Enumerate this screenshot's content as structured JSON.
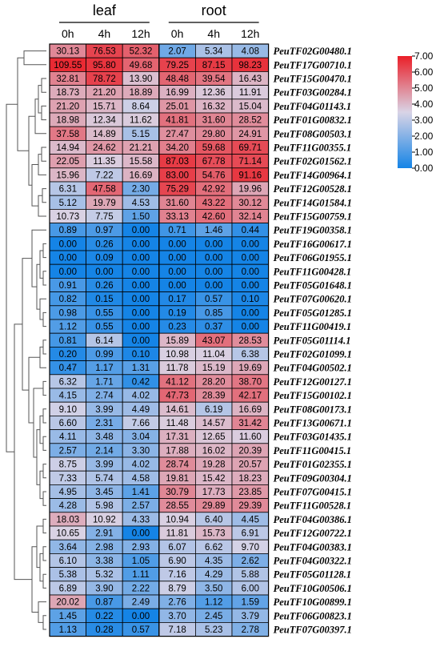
{
  "chart_data": {
    "type": "heatmap",
    "groups": [
      "leaf",
      "root"
    ],
    "columns": [
      "0h",
      "4h",
      "12h",
      "0h",
      "4h",
      "12h"
    ],
    "rows": [
      "PeuTF02G00480.1",
      "PeuTF17G00710.1",
      "PeuTF15G00470.1",
      "PeuTF03G00284.1",
      "PeuTF04G01143.1",
      "PeuTF01G00832.1",
      "PeuTF08G00503.1",
      "PeuTF11G00355.1",
      "PeuTF02G01562.1",
      "PeuTF14G00964.1",
      "PeuTF12G00528.1",
      "PeuTF14G01584.1",
      "PeuTF15G00759.1",
      "PeuTF19G00358.1",
      "PeuTF16G00617.1",
      "PeuTF06G01955.1",
      "PeuTF11G00428.1",
      "PeuTF05G01648.1",
      "PeuTF07G00620.1",
      "PeuTF05G01285.1",
      "PeuTF11G00419.1",
      "PeuTF05G01114.1",
      "PeuTF02G01099.1",
      "PeuTF04G00502.1",
      "PeuTF12G00127.1",
      "PeuTF15G00102.1",
      "PeuTF08G00173.1",
      "PeuTF13G00671.1",
      "PeuTF03G01435.1",
      "PeuTF11G00415.1",
      "PeuTF01G02355.1",
      "PeuTF09G00304.1",
      "PeuTF07G00415.1",
      "PeuTF11G00528.1",
      "PeuTF04G00386.1",
      "PeuTF12G00722.1",
      "PeuTF04G00383.1",
      "PeuTF04G00322.1",
      "PeuTF05G01128.1",
      "PeuTF10G00506.1",
      "PeuTF10G00899.1",
      "PeuTF06G00823.1",
      "PeuTF07G00397.1"
    ],
    "values": [
      [
        "30.13",
        "76.53",
        "52.32",
        "2.07",
        "5.34",
        "4.08"
      ],
      [
        "109.55",
        "95.80",
        "49.68",
        "79.25",
        "87.15",
        "98.23"
      ],
      [
        "32.81",
        "78.72",
        "13.90",
        "48.48",
        "39.54",
        "16.43"
      ],
      [
        "18.73",
        "21.20",
        "18.89",
        "16.99",
        "12.36",
        "11.91"
      ],
      [
        "21.20",
        "15.71",
        "8.64",
        "25.01",
        "16.32",
        "15.04"
      ],
      [
        "18.98",
        "12.34",
        "11.62",
        "41.81",
        "31.60",
        "28.52"
      ],
      [
        "37.58",
        "14.89",
        "5.15",
        "27.47",
        "29.80",
        "24.91"
      ],
      [
        "14.94",
        "24.62",
        "21.21",
        "34.20",
        "59.68",
        "69.71"
      ],
      [
        "22.05",
        "11.35",
        "15.58",
        "87.03",
        "67.78",
        "71.14"
      ],
      [
        "15.96",
        "7.22",
        "16.69",
        "83.00",
        "54.76",
        "91.16"
      ],
      [
        "6.31",
        "47.58",
        "2.30",
        "75.29",
        "42.92",
        "19.96"
      ],
      [
        "5.12",
        "19.79",
        "4.53",
        "31.60",
        "43.22",
        "30.12"
      ],
      [
        "10.73",
        "7.75",
        "1.50",
        "33.13",
        "42.60",
        "32.14"
      ],
      [
        "0.89",
        "0.97",
        "0.00",
        "0.71",
        "1.46",
        "0.44"
      ],
      [
        "0.00",
        "0.26",
        "0.00",
        "0.00",
        "0.00",
        "0.00"
      ],
      [
        "0.00",
        "0.09",
        "0.00",
        "0.00",
        "0.00",
        "0.00"
      ],
      [
        "0.00",
        "0.00",
        "0.00",
        "0.00",
        "0.00",
        "0.00"
      ],
      [
        "0.91",
        "0.26",
        "0.00",
        "0.00",
        "0.00",
        "0.00"
      ],
      [
        "0.82",
        "0.15",
        "0.00",
        "0.17",
        "0.57",
        "0.10"
      ],
      [
        "0.98",
        "0.55",
        "0.00",
        "0.19",
        "0.85",
        "0.00"
      ],
      [
        "1.12",
        "0.55",
        "0.00",
        "0.23",
        "0.37",
        "0.00"
      ],
      [
        "0.81",
        "6.14",
        "0.00",
        "15.89",
        "43.07",
        "28.53"
      ],
      [
        "0.20",
        "0.99",
        "0.10",
        "10.98",
        "11.04",
        "6.38"
      ],
      [
        "0.47",
        "1.17",
        "1.31",
        "11.78",
        "15.19",
        "19.69"
      ],
      [
        "6.32",
        "1.71",
        "0.42",
        "41.12",
        "28.20",
        "38.70"
      ],
      [
        "4.15",
        "2.74",
        "4.02",
        "47.73",
        "28.39",
        "42.17"
      ],
      [
        "9.10",
        "3.99",
        "4.49",
        "14.61",
        "6.19",
        "16.69"
      ],
      [
        "6.60",
        "2.31",
        "7.66",
        "11.48",
        "14.57",
        "31.42"
      ],
      [
        "4.11",
        "3.48",
        "3.04",
        "17.31",
        "12.65",
        "11.60"
      ],
      [
        "2.57",
        "2.14",
        "3.30",
        "17.88",
        "16.02",
        "20.39"
      ],
      [
        "8.75",
        "3.99",
        "4.02",
        "28.74",
        "19.28",
        "20.57"
      ],
      [
        "7.33",
        "5.74",
        "4.58",
        "19.81",
        "15.42",
        "18.23"
      ],
      [
        "4.95",
        "3.45",
        "1.41",
        "30.79",
        "17.73",
        "23.85"
      ],
      [
        "4.28",
        "5.98",
        "2.57",
        "28.55",
        "29.89",
        "29.39"
      ],
      [
        "18.03",
        "10.92",
        "4.33",
        "10.94",
        "6.40",
        "4.45"
      ],
      [
        "10.65",
        "2.91",
        "0.00",
        "11.81",
        "15.73",
        "6.91"
      ],
      [
        "3.64",
        "2.98",
        "2.93",
        "6.07",
        "6.62",
        "9.70"
      ],
      [
        "6.10",
        "3.38",
        "1.05",
        "6.90",
        "4.35",
        "2.62"
      ],
      [
        "5.38",
        "5.32",
        "1.11",
        "7.16",
        "4.29",
        "5.88"
      ],
      [
        "6.89",
        "3.90",
        "2.22",
        "8.79",
        "3.50",
        "6.00"
      ],
      [
        "20.02",
        "0.87",
        "2.49",
        "2.76",
        "1.12",
        "1.59"
      ],
      [
        "1.45",
        "0.22",
        "0.00",
        "3.70",
        "2.45",
        "3.79"
      ],
      [
        "1.13",
        "0.28",
        "0.57",
        "7.18",
        "5.23",
        "2.78"
      ]
    ],
    "legend": {
      "ticks": [
        "7.00",
        "6.00",
        "5.00",
        "4.00",
        "3.00",
        "2.00",
        "1.00",
        "0.00"
      ],
      "tick_values": [
        7,
        6,
        5,
        4,
        3,
        2,
        1,
        0
      ],
      "range": [
        0,
        7
      ],
      "colors": {
        "low": "#1584e6",
        "mid": "#d9d4e6",
        "high": "#ea1f28"
      },
      "placement": "right"
    },
    "color_scale": "log2(value+1)"
  }
}
